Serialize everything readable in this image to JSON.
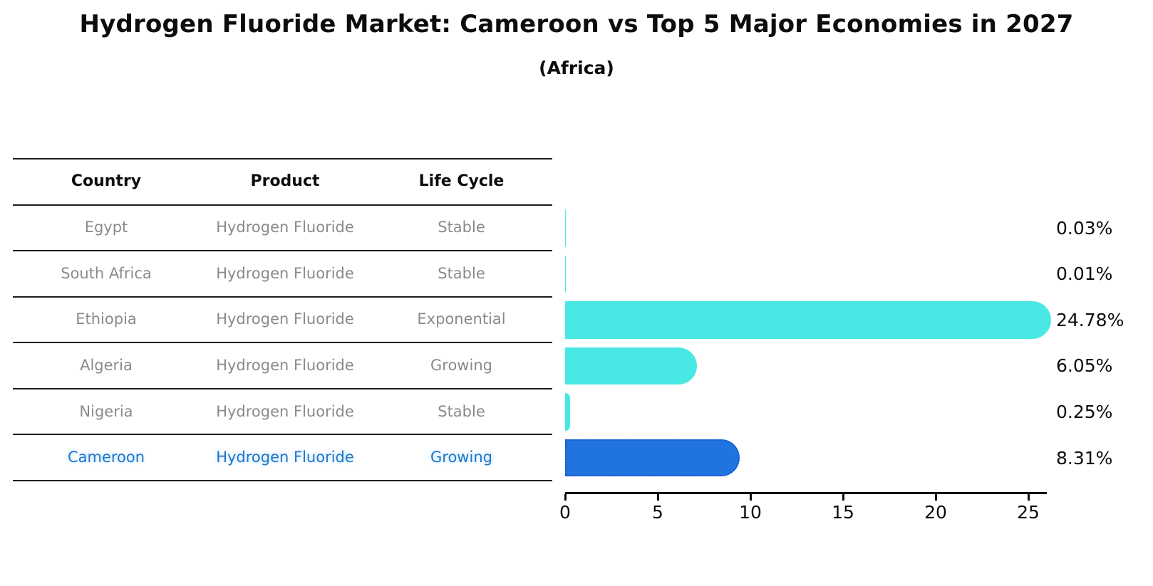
{
  "title": "Hydrogen Fluoride Market: Cameroon vs Top 5 Major Economies in 2027",
  "subtitle": "(Africa)",
  "table": {
    "columns": [
      "Country",
      "Product",
      "Life Cycle"
    ],
    "rows": [
      {
        "country": "Egypt",
        "product": "Hydrogen Fluoride",
        "life_cycle": "Stable",
        "highlight": false
      },
      {
        "country": "South Africa",
        "product": "Hydrogen Fluoride",
        "life_cycle": "Stable",
        "highlight": false
      },
      {
        "country": "Ethiopia",
        "product": "Hydrogen Fluoride",
        "life_cycle": "Exponential",
        "highlight": false
      },
      {
        "country": "Algeria",
        "product": "Hydrogen Fluoride",
        "life_cycle": "Growing",
        "highlight": false
      },
      {
        "country": "Nigeria",
        "product": "Hydrogen Fluoride",
        "life_cycle": "Stable",
        "highlight": false
      },
      {
        "country": "Cameroon",
        "product": "Hydrogen Fluoride",
        "life_cycle": "Growing",
        "highlight": true
      }
    ]
  },
  "chart_data": {
    "type": "bar",
    "orientation": "horizontal",
    "title": "Hydrogen Fluoride Market: Cameroon vs Top 5 Major Economies in 2027",
    "subtitle": "(Africa)",
    "categories": [
      "Egypt",
      "South Africa",
      "Ethiopia",
      "Algeria",
      "Nigeria",
      "Cameroon"
    ],
    "values": [
      0.03,
      0.01,
      24.78,
      6.05,
      0.25,
      8.31
    ],
    "value_labels": [
      "0.03%",
      "0.01%",
      "24.78%",
      "6.05%",
      "0.25%",
      "8.31%"
    ],
    "x_ticks": [
      "0",
      "5",
      "10",
      "15",
      "20",
      "25"
    ],
    "xlim": [
      0,
      25.9
    ],
    "grid": false,
    "legend": false,
    "xlabel": "",
    "ylabel": "",
    "highlight_index": 5,
    "bar_color_default": "#4AE8E4",
    "bar_color_highlight": "#2174E0",
    "highlight_border_color": "#1456C8"
  },
  "colors": {
    "highlight_text": "#2177C8",
    "table_text": "#8A8A8A",
    "header_text": "#0D0D0D",
    "line": "#1C1C1C",
    "axis": "#0D0D0D",
    "background": "#FFFFFF"
  }
}
